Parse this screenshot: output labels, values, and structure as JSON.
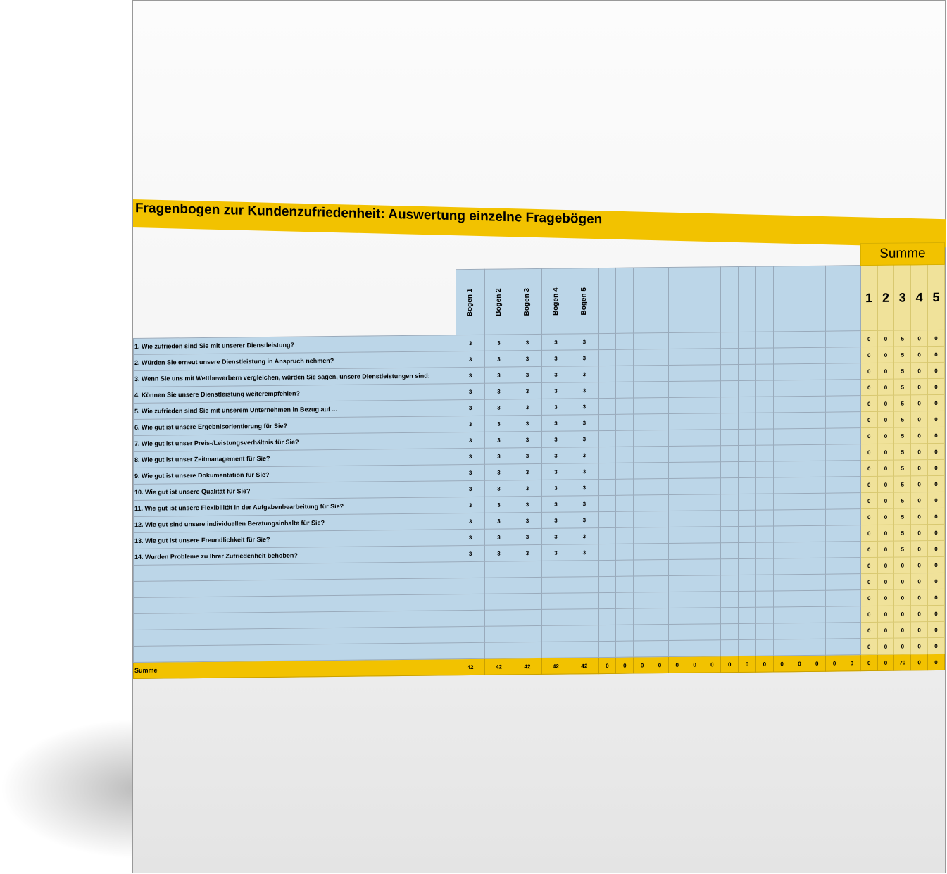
{
  "title": "Fragenbogen zur Kundenzufriedenheit: Auswertung einzelne Fragebögen",
  "summe_header": "Summe",
  "summe_row_label": "Summe",
  "bogen_headers": [
    "Bogen 1",
    "Bogen 2",
    "Bogen 3",
    "Bogen 4",
    "Bogen 5",
    "",
    "",
    "",
    "",
    "",
    "",
    "",
    "",
    "",
    "",
    "",
    "",
    "",
    "",
    ""
  ],
  "rating_headers": [
    "1",
    "2",
    "3",
    "4",
    "5"
  ],
  "questions": [
    "1. Wie zufrieden sind Sie mit unserer Dienstleistung?",
    "2. Würden Sie erneut unsere Dienstleistung in Anspruch nehmen?",
    "3. Wenn Sie uns mit Wettbewerbern vergleichen, würden Sie sagen, unsere Dienstleistungen sind:",
    "4. Können Sie unsere Dienstleistung weiterempfehlen?",
    "5. Wie zufrieden sind Sie mit unserem Unternehmen in Bezug auf ...",
    "6. Wie gut ist unsere Ergebnisorientierung für Sie?",
    "7. Wie gut ist unser Preis-/Leistungsverhältnis für Sie?",
    "8. Wie gut ist unser Zeitmanagement für Sie?",
    "9. Wie gut ist unsere Dokumentation für Sie?",
    "10. Wie gut ist unsere Qualität für Sie?",
    "11. Wie gut ist unsere Flexibilität in der Aufgabenbearbeitung für Sie?",
    "12. Wie gut sind unsere individuellen Beratungsinhalte für Sie?",
    "13. Wie gut ist unsere Freundlichkeit für Sie?",
    "14. Wurden Probleme zu Ihrer Zufriedenheit behoben?",
    "",
    "",
    "",
    "",
    "",
    ""
  ],
  "answers": [
    [
      "3",
      "3",
      "3",
      "3",
      "3"
    ],
    [
      "3",
      "3",
      "3",
      "3",
      "3"
    ],
    [
      "3",
      "3",
      "3",
      "3",
      "3"
    ],
    [
      "3",
      "3",
      "3",
      "3",
      "3"
    ],
    [
      "3",
      "3",
      "3",
      "3",
      "3"
    ],
    [
      "3",
      "3",
      "3",
      "3",
      "3"
    ],
    [
      "3",
      "3",
      "3",
      "3",
      "3"
    ],
    [
      "3",
      "3",
      "3",
      "3",
      "3"
    ],
    [
      "3",
      "3",
      "3",
      "3",
      "3"
    ],
    [
      "3",
      "3",
      "3",
      "3",
      "3"
    ],
    [
      "3",
      "3",
      "3",
      "3",
      "3"
    ],
    [
      "3",
      "3",
      "3",
      "3",
      "3"
    ],
    [
      "3",
      "3",
      "3",
      "3",
      "3"
    ],
    [
      "3",
      "3",
      "3",
      "3",
      "3"
    ],
    [],
    [],
    [],
    [],
    [],
    []
  ],
  "rating_counts": [
    [
      "0",
      "0",
      "5",
      "0",
      "0"
    ],
    [
      "0",
      "0",
      "5",
      "0",
      "0"
    ],
    [
      "0",
      "0",
      "5",
      "0",
      "0"
    ],
    [
      "0",
      "0",
      "5",
      "0",
      "0"
    ],
    [
      "0",
      "0",
      "5",
      "0",
      "0"
    ],
    [
      "0",
      "0",
      "5",
      "0",
      "0"
    ],
    [
      "0",
      "0",
      "5",
      "0",
      "0"
    ],
    [
      "0",
      "0",
      "5",
      "0",
      "0"
    ],
    [
      "0",
      "0",
      "5",
      "0",
      "0"
    ],
    [
      "0",
      "0",
      "5",
      "0",
      "0"
    ],
    [
      "0",
      "0",
      "5",
      "0",
      "0"
    ],
    [
      "0",
      "0",
      "5",
      "0",
      "0"
    ],
    [
      "0",
      "0",
      "5",
      "0",
      "0"
    ],
    [
      "0",
      "0",
      "5",
      "0",
      "0"
    ],
    [
      "0",
      "0",
      "0",
      "0",
      "0"
    ],
    [
      "0",
      "0",
      "0",
      "0",
      "0"
    ],
    [
      "0",
      "0",
      "0",
      "0",
      "0"
    ],
    [
      "0",
      "0",
      "0",
      "0",
      "0"
    ],
    [
      "0",
      "0",
      "0",
      "0",
      "0"
    ],
    [
      "0",
      "0",
      "0",
      "0",
      "0"
    ]
  ],
  "bogen_totals": [
    "42",
    "42",
    "42",
    "42",
    "42",
    "0",
    "0",
    "0",
    "0",
    "0",
    "0",
    "0",
    "0",
    "0",
    "0",
    "0",
    "0",
    "0",
    "0",
    "0"
  ],
  "rating_totals": [
    "0",
    "0",
    "70",
    "0",
    "0"
  ]
}
